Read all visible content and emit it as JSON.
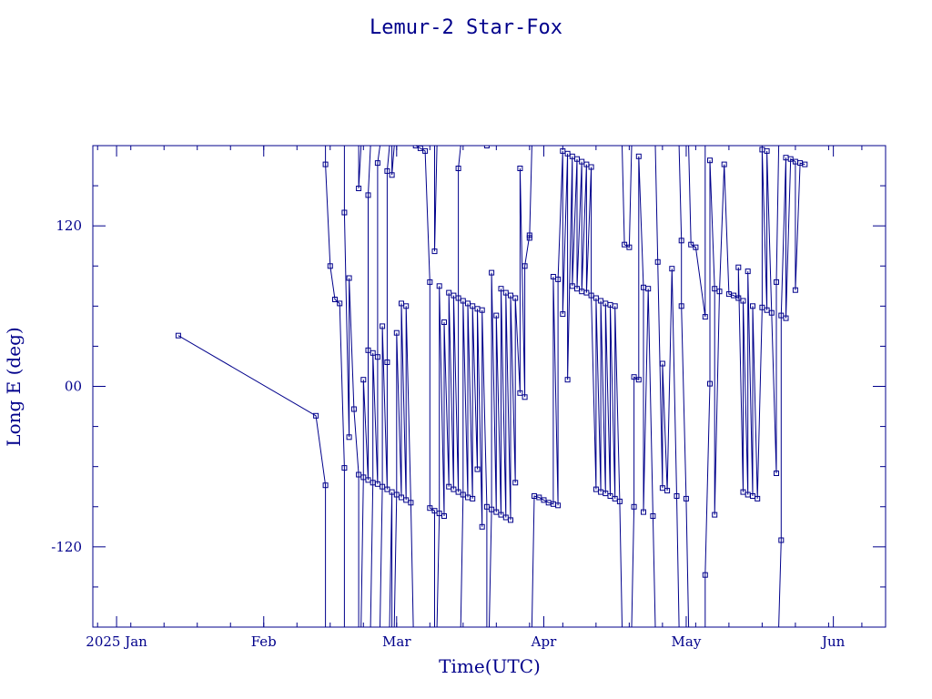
{
  "chart_data": {
    "type": "line",
    "title": "Lemur-2 Star-Fox",
    "xlabel": "Time(UTC)",
    "ylabel": "Long E (deg)",
    "xlim": [
      "2024-12-27",
      "2025-06-12"
    ],
    "ylim": [
      -180,
      180
    ],
    "x_ticks": [
      {
        "date": "2025-01-01",
        "label": "2025 Jan"
      },
      {
        "date": "2025-02-01",
        "label": "Feb"
      },
      {
        "date": "2025-03-01",
        "label": "Mar"
      },
      {
        "date": "2025-04-01",
        "label": "Apr"
      },
      {
        "date": "2025-05-01",
        "label": "May"
      },
      {
        "date": "2025-06-01",
        "label": "Jun"
      }
    ],
    "y_ticks": [
      {
        "value": 120,
        "label": "120"
      },
      {
        "value": 0,
        "label": "00"
      },
      {
        "value": -120,
        "label": "-120"
      }
    ],
    "grid": false,
    "color": "#00008b",
    "series": [
      {
        "points": [
          [
            "2025-01-14",
            38
          ],
          [
            "2025-02-12",
            -22
          ],
          [
            "2025-02-14",
            -74
          ],
          [
            "2025-02-14",
            166
          ],
          [
            "2025-02-15",
            90
          ],
          [
            "2025-02-16",
            65
          ],
          [
            "2025-02-17",
            62
          ],
          [
            "2025-02-18",
            -61
          ],
          [
            "2025-02-18",
            130
          ],
          [
            "2025-02-19",
            -38
          ],
          [
            "2025-02-19",
            81
          ],
          [
            "2025-02-20",
            -17
          ],
          [
            "2025-02-21",
            -66
          ],
          [
            "2025-02-21",
            148
          ],
          [
            "2025-02-22",
            -68
          ],
          [
            "2025-02-22",
            5
          ],
          [
            "2025-02-23",
            -70
          ],
          [
            "2025-02-23",
            27
          ],
          [
            "2025-02-23",
            143
          ],
          [
            "2025-02-24",
            -72
          ],
          [
            "2025-02-24",
            25
          ],
          [
            "2025-02-25",
            -73
          ],
          [
            "2025-02-25",
            22
          ],
          [
            "2025-02-25",
            167
          ],
          [
            "2025-02-26",
            -75
          ],
          [
            "2025-02-26",
            45
          ],
          [
            "2025-02-27",
            -77
          ],
          [
            "2025-02-27",
            18
          ],
          [
            "2025-02-27",
            161
          ],
          [
            "2025-02-28",
            -79
          ],
          [
            "2025-02-28",
            158
          ],
          [
            "2025-03-01",
            -81
          ],
          [
            "2025-03-01",
            40
          ],
          [
            "2025-03-02",
            -83
          ],
          [
            "2025-03-02",
            62
          ],
          [
            "2025-03-03",
            -85
          ],
          [
            "2025-03-03",
            60
          ],
          [
            "2025-03-04",
            -87
          ],
          [
            "2025-03-05",
            180
          ],
          [
            "2025-03-06",
            178
          ],
          [
            "2025-03-07",
            176
          ],
          [
            "2025-03-08",
            78
          ],
          [
            "2025-03-08",
            -91
          ],
          [
            "2025-03-09",
            -93
          ],
          [
            "2025-03-09",
            101
          ],
          [
            "2025-03-10",
            -95
          ],
          [
            "2025-03-10",
            75
          ],
          [
            "2025-03-11",
            -97
          ],
          [
            "2025-03-11",
            48
          ],
          [
            "2025-03-12",
            -75
          ],
          [
            "2025-03-12",
            70
          ],
          [
            "2025-03-13",
            -77
          ],
          [
            "2025-03-13",
            68
          ],
          [
            "2025-03-14",
            -79
          ],
          [
            "2025-03-14",
            66
          ],
          [
            "2025-03-14",
            163
          ],
          [
            "2025-03-15",
            -81
          ],
          [
            "2025-03-15",
            64
          ],
          [
            "2025-03-16",
            -83
          ],
          [
            "2025-03-16",
            62
          ],
          [
            "2025-03-17",
            -84
          ],
          [
            "2025-03-17",
            60
          ],
          [
            "2025-03-18",
            -62
          ],
          [
            "2025-03-18",
            58
          ],
          [
            "2025-03-19",
            -105
          ],
          [
            "2025-03-19",
            57
          ],
          [
            "2025-03-20",
            -90
          ],
          [
            "2025-03-20",
            180
          ],
          [
            "2025-03-21",
            -92
          ],
          [
            "2025-03-21",
            85
          ],
          [
            "2025-03-22",
            -94
          ],
          [
            "2025-03-22",
            53
          ],
          [
            "2025-03-23",
            -96
          ],
          [
            "2025-03-23",
            73
          ],
          [
            "2025-03-24",
            -98
          ],
          [
            "2025-03-24",
            70
          ],
          [
            "2025-03-25",
            -100
          ],
          [
            "2025-03-25",
            68
          ],
          [
            "2025-03-26",
            -72
          ],
          [
            "2025-03-26",
            66
          ],
          [
            "2025-03-27",
            -5
          ],
          [
            "2025-03-27",
            163
          ],
          [
            "2025-03-28",
            -8
          ],
          [
            "2025-03-28",
            90
          ],
          [
            "2025-03-29",
            113
          ],
          [
            "2025-03-29",
            111
          ],
          [
            "2025-03-30",
            -82
          ],
          [
            "2025-03-31",
            -83
          ],
          [
            "2025-04-01",
            -85
          ],
          [
            "2025-04-02",
            -87
          ],
          [
            "2025-04-03",
            -88
          ],
          [
            "2025-04-03",
            82
          ],
          [
            "2025-04-04",
            -89
          ],
          [
            "2025-04-04",
            80
          ],
          [
            "2025-04-05",
            176
          ],
          [
            "2025-04-05",
            54
          ],
          [
            "2025-04-06",
            174
          ],
          [
            "2025-04-06",
            5
          ],
          [
            "2025-04-07",
            172
          ],
          [
            "2025-04-07",
            75
          ],
          [
            "2025-04-08",
            170
          ],
          [
            "2025-04-08",
            73
          ],
          [
            "2025-04-09",
            168
          ],
          [
            "2025-04-09",
            71
          ],
          [
            "2025-04-10",
            166
          ],
          [
            "2025-04-10",
            70
          ],
          [
            "2025-04-11",
            164
          ],
          [
            "2025-04-11",
            68
          ],
          [
            "2025-04-12",
            -77
          ],
          [
            "2025-04-12",
            66
          ],
          [
            "2025-04-13",
            -79
          ],
          [
            "2025-04-13",
            64
          ],
          [
            "2025-04-14",
            -80
          ],
          [
            "2025-04-14",
            62
          ],
          [
            "2025-04-15",
            -82
          ],
          [
            "2025-04-15",
            61
          ],
          [
            "2025-04-16",
            -84
          ],
          [
            "2025-04-16",
            60
          ],
          [
            "2025-04-17",
            -86
          ],
          [
            "2025-04-18",
            106
          ],
          [
            "2025-04-19",
            104
          ],
          [
            "2025-04-20",
            -90
          ],
          [
            "2025-04-20",
            7
          ],
          [
            "2025-04-21",
            5
          ],
          [
            "2025-04-21",
            172
          ],
          [
            "2025-04-22",
            74
          ],
          [
            "2025-04-22",
            -94
          ],
          [
            "2025-04-23",
            73
          ],
          [
            "2025-04-24",
            -97
          ],
          [
            "2025-04-25",
            93
          ],
          [
            "2025-04-26",
            -76
          ],
          [
            "2025-04-26",
            17
          ],
          [
            "2025-04-27",
            -78
          ],
          [
            "2025-04-28",
            88
          ],
          [
            "2025-04-29",
            -82
          ],
          [
            "2025-04-30",
            109
          ],
          [
            "2025-04-30",
            60
          ],
          [
            "2025-05-01",
            -84
          ],
          [
            "2025-05-02",
            106
          ],
          [
            "2025-05-03",
            104
          ],
          [
            "2025-05-05",
            52
          ],
          [
            "2025-05-05",
            -141
          ],
          [
            "2025-05-06",
            2
          ],
          [
            "2025-05-06",
            169
          ],
          [
            "2025-05-07",
            73
          ],
          [
            "2025-05-07",
            -96
          ],
          [
            "2025-05-08",
            71
          ],
          [
            "2025-05-09",
            166
          ],
          [
            "2025-05-10",
            69
          ],
          [
            "2025-05-11",
            68
          ],
          [
            "2025-05-12",
            66
          ],
          [
            "2025-05-12",
            89
          ],
          [
            "2025-05-13",
            -79
          ],
          [
            "2025-05-13",
            64
          ],
          [
            "2025-05-14",
            -81
          ],
          [
            "2025-05-14",
            86
          ],
          [
            "2025-05-15",
            -82
          ],
          [
            "2025-05-15",
            60
          ],
          [
            "2025-05-16",
            -84
          ],
          [
            "2025-05-17",
            59
          ],
          [
            "2025-05-17",
            177
          ],
          [
            "2025-05-18",
            57
          ],
          [
            "2025-05-18",
            176
          ],
          [
            "2025-05-19",
            55
          ],
          [
            "2025-05-20",
            -65
          ],
          [
            "2025-05-20",
            78
          ],
          [
            "2025-05-21",
            -115
          ],
          [
            "2025-05-21",
            53
          ],
          [
            "2025-05-22",
            171
          ],
          [
            "2025-05-22",
            51
          ],
          [
            "2025-05-23",
            170
          ],
          [
            "2025-05-24",
            168
          ],
          [
            "2025-05-24",
            72
          ],
          [
            "2025-05-25",
            167
          ],
          [
            "2025-05-26",
            166
          ]
        ]
      }
    ]
  }
}
